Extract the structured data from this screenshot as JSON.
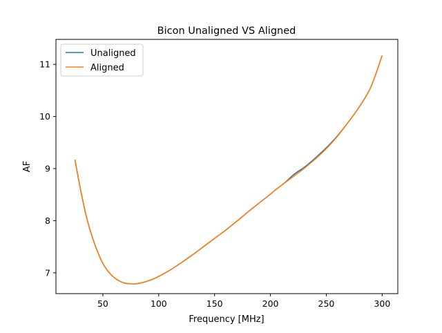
{
  "chart_data": {
    "type": "line",
    "title": "Bicon Unaligned VS Aligned",
    "xlabel": "Frequency [MHz]",
    "ylabel": "AF",
    "xlim": [
      8,
      314
    ],
    "ylim": [
      6.6,
      11.48
    ],
    "xticks": [
      50,
      100,
      150,
      200,
      250,
      300
    ],
    "yticks": [
      7,
      8,
      9,
      10,
      11
    ],
    "grid": false,
    "legend_position": "top-left",
    "series": [
      {
        "name": "Unaligned",
        "color": "#1f77b4",
        "x": [
          25,
          30,
          35,
          40,
          45,
          50,
          55,
          60,
          65,
          70,
          75,
          80,
          85,
          90,
          95,
          100,
          110,
          120,
          130,
          140,
          150,
          160,
          170,
          180,
          190,
          200,
          205,
          210,
          215,
          220,
          225,
          230,
          240,
          250,
          260,
          270,
          280,
          290,
          300
        ],
        "y": [
          9.17,
          8.6,
          8.1,
          7.72,
          7.42,
          7.18,
          7.02,
          6.91,
          6.84,
          6.8,
          6.79,
          6.79,
          6.81,
          6.84,
          6.88,
          6.93,
          7.05,
          7.19,
          7.34,
          7.5,
          7.66,
          7.82,
          7.99,
          8.17,
          8.34,
          8.51,
          8.6,
          8.68,
          8.77,
          8.87,
          8.95,
          9.02,
          9.2,
          9.4,
          9.63,
          9.9,
          10.2,
          10.57,
          11.17
        ]
      },
      {
        "name": "Aligned",
        "color": "#ff7f0e",
        "x": [
          25,
          30,
          35,
          40,
          45,
          50,
          55,
          60,
          65,
          70,
          75,
          80,
          85,
          90,
          95,
          100,
          110,
          120,
          130,
          140,
          150,
          160,
          170,
          180,
          190,
          200,
          205,
          210,
          215,
          220,
          225,
          230,
          240,
          250,
          260,
          270,
          280,
          290,
          300
        ],
        "y": [
          9.17,
          8.6,
          8.1,
          7.72,
          7.42,
          7.18,
          7.02,
          6.91,
          6.84,
          6.8,
          6.79,
          6.79,
          6.81,
          6.84,
          6.88,
          6.93,
          7.05,
          7.19,
          7.34,
          7.5,
          7.66,
          7.82,
          7.99,
          8.17,
          8.34,
          8.51,
          8.6,
          8.68,
          8.76,
          8.84,
          8.92,
          9.0,
          9.18,
          9.38,
          9.62,
          9.9,
          10.2,
          10.57,
          11.17
        ]
      }
    ]
  }
}
